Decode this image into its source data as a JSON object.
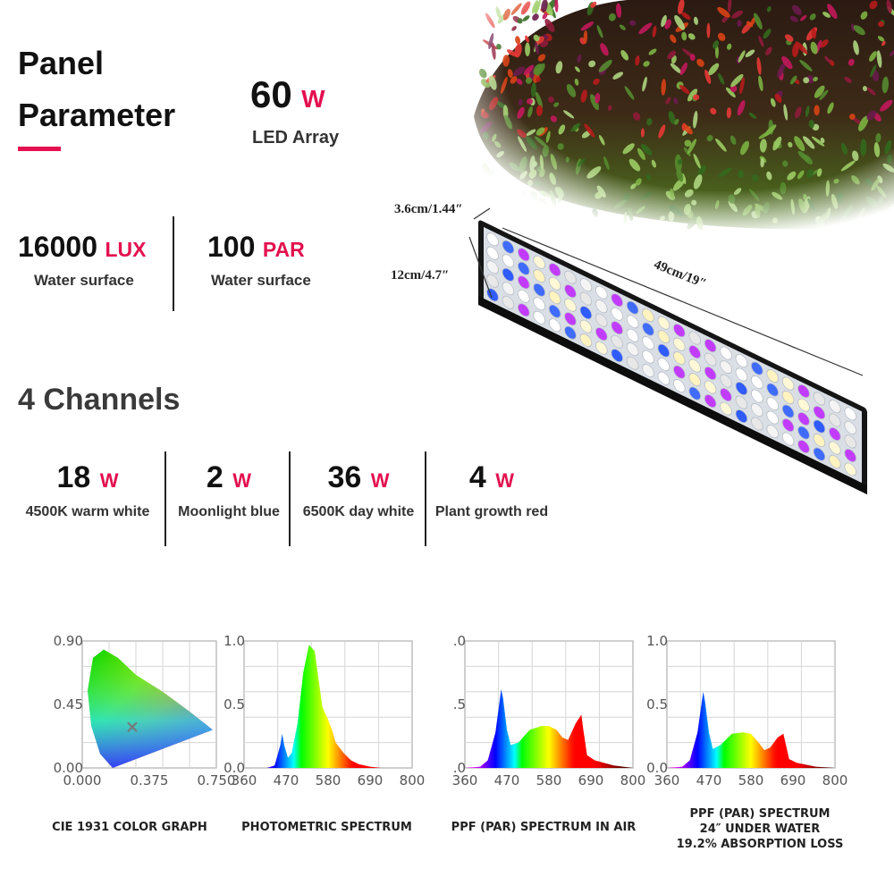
{
  "panel": {
    "title_line1": "Panel",
    "title_line2": "Parameter"
  },
  "array": {
    "value": "60",
    "unit": "W",
    "label": "LED Array"
  },
  "lux": {
    "value": "16000",
    "unit": "LUX",
    "label": "Water surface"
  },
  "par": {
    "value": "100",
    "unit": "PAR",
    "label": "Water surface"
  },
  "dimensions": {
    "height": "3.6cm/1.44″",
    "depth": "12cm/4.7″",
    "length": "49cm/19″"
  },
  "channels": {
    "heading": "4 Channels",
    "items": [
      {
        "value": "18",
        "unit": "W",
        "label": "4500K warm white"
      },
      {
        "value": "2",
        "unit": "W",
        "label": "Moonlight blue"
      },
      {
        "value": "36",
        "unit": "W",
        "label": "6500K day white"
      },
      {
        "value": "4",
        "unit": "W",
        "label": "Plant growth red"
      }
    ]
  },
  "chart_data": [
    {
      "type": "area",
      "title": "CIE 1931 COLOR GRAPH",
      "x_ticks": [
        "0.000",
        "0.375",
        "0.750"
      ],
      "y_ticks": [
        "0.00",
        "0.45",
        "0.90"
      ],
      "xlim": [
        0,
        0.75
      ],
      "ylim": [
        0,
        0.9
      ],
      "marker": {
        "x": 0.28,
        "y": 0.29
      }
    },
    {
      "type": "area",
      "title": "PHOTOMETRIC SPECTRUM",
      "x_ticks": [
        "360",
        "470",
        "580",
        "690",
        "800"
      ],
      "y_ticks": [
        "0.0",
        "0.5",
        "1.0"
      ],
      "xlim": [
        360,
        800
      ],
      "ylim": [
        0,
        1.0
      ],
      "x": [
        360,
        420,
        440,
        455,
        460,
        465,
        475,
        485,
        500,
        515,
        530,
        545,
        555,
        565,
        580,
        590,
        600,
        620,
        640,
        660,
        690,
        720,
        800
      ],
      "y": [
        0,
        0,
        0.02,
        0.18,
        0.27,
        0.18,
        0.08,
        0.12,
        0.35,
        0.75,
        0.97,
        0.92,
        0.7,
        0.48,
        0.38,
        0.3,
        0.2,
        0.12,
        0.06,
        0.03,
        0.01,
        0,
        0
      ]
    },
    {
      "type": "area",
      "title": "PPF (PAR) SPECTRUM IN AIR",
      "x_ticks": [
        "360",
        "470",
        "580",
        "690",
        "800"
      ],
      "y_ticks": [
        ".0",
        ".5",
        ".0"
      ],
      "xlim": [
        360,
        800
      ],
      "ylim": [
        0,
        1.0
      ],
      "x": [
        360,
        400,
        420,
        440,
        455,
        460,
        470,
        480,
        500,
        530,
        560,
        580,
        600,
        615,
        630,
        650,
        665,
        670,
        680,
        700,
        750,
        800
      ],
      "y": [
        0,
        0.01,
        0.06,
        0.28,
        0.62,
        0.55,
        0.3,
        0.18,
        0.2,
        0.3,
        0.33,
        0.33,
        0.3,
        0.24,
        0.22,
        0.35,
        0.42,
        0.3,
        0.1,
        0.06,
        0.02,
        0
      ]
    },
    {
      "type": "area",
      "title": "PPF (PAR) SPECTRUM",
      "subtitle": "24″  UNDER WATER",
      "subtitle2": "19.2% ABSORPTION LOSS",
      "x_ticks": [
        "360",
        "470",
        "580",
        "690",
        "800"
      ],
      "y_ticks": [
        "0.0",
        "0.5",
        "1.0"
      ],
      "xlim": [
        360,
        800
      ],
      "ylim": [
        0,
        1.0
      ],
      "x": [
        360,
        400,
        420,
        440,
        455,
        460,
        470,
        480,
        500,
        530,
        560,
        580,
        600,
        615,
        630,
        650,
        665,
        670,
        680,
        700,
        750,
        800
      ],
      "y": [
        0,
        0.01,
        0.06,
        0.28,
        0.6,
        0.52,
        0.28,
        0.15,
        0.18,
        0.27,
        0.28,
        0.27,
        0.2,
        0.14,
        0.16,
        0.24,
        0.27,
        0.2,
        0.07,
        0.04,
        0.01,
        0
      ]
    }
  ],
  "colors": {
    "accent": "#e4104f"
  }
}
